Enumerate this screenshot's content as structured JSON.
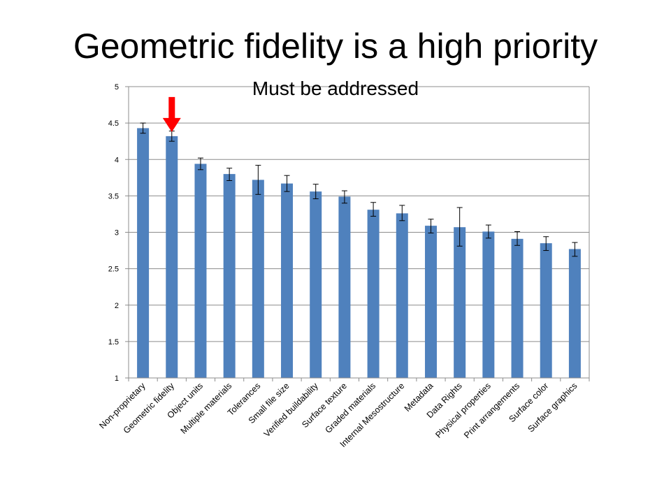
{
  "slide": {
    "title": "Geometric fidelity is a high priority"
  },
  "chart_data": {
    "type": "bar",
    "subtitle": "Must be addressed",
    "categories": [
      "Non-proprietary",
      "Geometric fidelity",
      "Object units",
      "Multiple materials",
      "Tolerances",
      "Small file size",
      "Verified buildability",
      "Surface texture",
      "Graded materials",
      "Internal Mesostructure",
      "Metadata",
      "Data Rights",
      "Physical properties",
      "Print arrangements",
      "Surface color",
      "Surface graphics"
    ],
    "values": [
      4.43,
      4.32,
      3.94,
      3.8,
      3.72,
      3.67,
      3.56,
      3.49,
      3.31,
      3.26,
      3.09,
      3.07,
      3.01,
      2.91,
      2.85,
      2.77
    ],
    "error_low": [
      4.36,
      4.25,
      3.86,
      3.71,
      3.52,
      3.56,
      3.46,
      3.4,
      3.22,
      3.16,
      2.99,
      2.81,
      2.92,
      2.82,
      2.75,
      2.67
    ],
    "error_high": [
      4.5,
      4.39,
      4.02,
      3.88,
      3.92,
      3.78,
      3.66,
      3.57,
      3.41,
      3.37,
      3.18,
      3.34,
      3.1,
      3.01,
      2.94,
      2.86
    ],
    "yticks": [
      "1",
      "1.5",
      "2",
      "2.5",
      "3",
      "3.5",
      "4",
      "4.5",
      "5"
    ],
    "ylim": [
      1,
      5
    ],
    "grid": true,
    "highlight_category": "Geometric fidelity",
    "colors": {
      "bar": "#4f81bd",
      "arrow": "#ff0000",
      "grid": "#8c8c8c"
    }
  }
}
